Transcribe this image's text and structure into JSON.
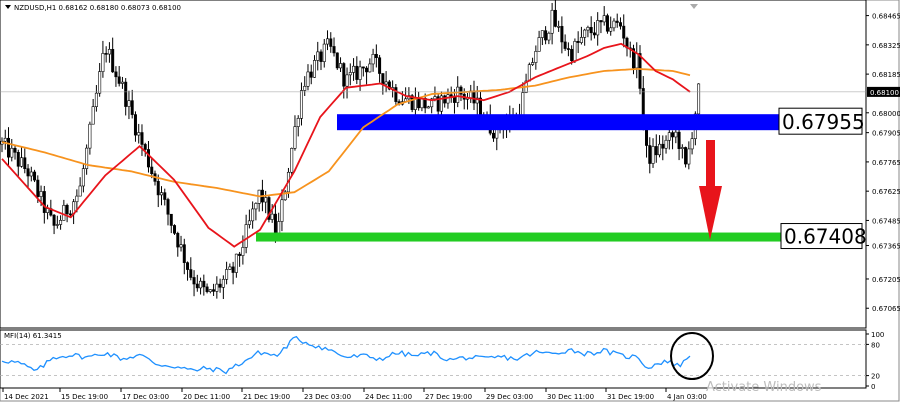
{
  "symbol_info": "NZDUSD,H1  0.68162 0.68180 0.68073 0.68100",
  "mfi_label": "MFI(14) 61.3415",
  "watermark": "Activate Windows",
  "colors": {
    "candle": "#000000",
    "ma_fast": "#e8141b",
    "ma_slow": "#f7931e",
    "resistance_zone": "#0000ff",
    "support_zone": "#22cc22",
    "arrow": "#e8141b",
    "mfi_line": "#1e90ff"
  },
  "chart_data": [
    {
      "type": "candlestick",
      "title": "NZDUSD,H1",
      "x_ticks": [
        "14 Dec 2021",
        "15 Dec 19:00",
        "17 Dec 03:00",
        "20 Dec 11:00",
        "21 Dec 19:00",
        "23 Dec 03:00",
        "24 Dec 11:00",
        "27 Dec 19:00",
        "29 Dec 03:00",
        "30 Dec 11:00",
        "31 Dec 19:00",
        "4 Jan 03:00"
      ],
      "y_ticks": [
        "0.68465",
        "0.68325",
        "0.68185",
        "0.68000",
        "0.67905",
        "0.67765",
        "0.67625",
        "0.67485",
        "0.67365",
        "0.67205",
        "0.67065"
      ],
      "ylim": [
        0.6698,
        0.6853
      ],
      "current_price": "0.68100",
      "levels": [
        {
          "label": "0.67955",
          "price": 0.67955,
          "from_x": "23 Dec 03:00",
          "color": "blue"
        },
        {
          "label": "0.67408",
          "price": 0.67408,
          "from_x": "21 Dec 19:00",
          "color": "green"
        }
      ],
      "close_anchors": [
        [
          0,
          0.6785
        ],
        [
          0.03,
          0.6772
        ],
        [
          0.06,
          0.6745
        ],
        [
          0.09,
          0.6762
        ],
        [
          0.12,
          0.6832
        ],
        [
          0.14,
          0.6812
        ],
        [
          0.16,
          0.6788
        ],
        [
          0.19,
          0.6755
        ],
        [
          0.22,
          0.6722
        ],
        [
          0.24,
          0.6712
        ],
        [
          0.27,
          0.6725
        ],
        [
          0.3,
          0.6762
        ],
        [
          0.32,
          0.6742
        ],
        [
          0.35,
          0.6815
        ],
        [
          0.38,
          0.6832
        ],
        [
          0.4,
          0.6815
        ],
        [
          0.43,
          0.6825
        ],
        [
          0.46,
          0.6808
        ],
        [
          0.5,
          0.6803
        ],
        [
          0.53,
          0.681
        ],
        [
          0.55,
          0.6805
        ],
        [
          0.57,
          0.6792
        ],
        [
          0.6,
          0.6798
        ],
        [
          0.62,
          0.683
        ],
        [
          0.64,
          0.6845
        ],
        [
          0.66,
          0.6828
        ],
        [
          0.68,
          0.6838
        ],
        [
          0.7,
          0.6842
        ],
        [
          0.72,
          0.6842
        ],
        [
          0.73,
          0.6828
        ],
        [
          0.74,
          0.6823
        ],
        [
          0.75,
          0.6778
        ],
        [
          0.77,
          0.6785
        ],
        [
          0.785,
          0.679
        ],
        [
          0.795,
          0.6773
        ],
        [
          0.81,
          0.681
        ]
      ],
      "ma_fast_anchors": [
        [
          0,
          0.6778
        ],
        [
          0.05,
          0.6755
        ],
        [
          0.08,
          0.675
        ],
        [
          0.12,
          0.677
        ],
        [
          0.16,
          0.6784
        ],
        [
          0.2,
          0.6768
        ],
        [
          0.24,
          0.6745
        ],
        [
          0.27,
          0.6736
        ],
        [
          0.3,
          0.6744
        ],
        [
          0.34,
          0.6772
        ],
        [
          0.37,
          0.6798
        ],
        [
          0.4,
          0.6812
        ],
        [
          0.44,
          0.6814
        ],
        [
          0.47,
          0.6808
        ],
        [
          0.5,
          0.6806
        ],
        [
          0.53,
          0.6808
        ],
        [
          0.56,
          0.6806
        ],
        [
          0.59,
          0.681
        ],
        [
          0.62,
          0.6817
        ],
        [
          0.65,
          0.6822
        ],
        [
          0.68,
          0.6827
        ],
        [
          0.7,
          0.6831
        ],
        [
          0.72,
          0.6833
        ],
        [
          0.74,
          0.6828
        ],
        [
          0.76,
          0.682
        ],
        [
          0.78,
          0.6816
        ],
        [
          0.8,
          0.681
        ]
      ],
      "ma_slow_anchors": [
        [
          0,
          0.6786
        ],
        [
          0.05,
          0.6781
        ],
        [
          0.1,
          0.6775
        ],
        [
          0.15,
          0.6772
        ],
        [
          0.2,
          0.6767
        ],
        [
          0.25,
          0.6764
        ],
        [
          0.3,
          0.676
        ],
        [
          0.34,
          0.6762
        ],
        [
          0.38,
          0.6772
        ],
        [
          0.42,
          0.6793
        ],
        [
          0.46,
          0.6804
        ],
        [
          0.5,
          0.6809
        ],
        [
          0.54,
          0.681
        ],
        [
          0.58,
          0.6811
        ],
        [
          0.62,
          0.6813
        ],
        [
          0.66,
          0.6817
        ],
        [
          0.7,
          0.682
        ],
        [
          0.74,
          0.6821
        ],
        [
          0.78,
          0.682
        ],
        [
          0.8,
          0.6818
        ]
      ]
    },
    {
      "type": "line",
      "title": "MFI(14) 61.3415",
      "ylim": [
        0,
        100
      ],
      "y_ticks": [
        "100",
        "80",
        "20",
        "0"
      ],
      "value_anchors": [
        [
          0,
          50
        ],
        [
          0.02,
          44
        ],
        [
          0.04,
          28
        ],
        [
          0.06,
          55
        ],
        [
          0.08,
          60
        ],
        [
          0.1,
          55
        ],
        [
          0.12,
          64
        ],
        [
          0.14,
          52
        ],
        [
          0.16,
          60
        ],
        [
          0.18,
          42
        ],
        [
          0.2,
          38
        ],
        [
          0.22,
          30
        ],
        [
          0.24,
          34
        ],
        [
          0.26,
          28
        ],
        [
          0.28,
          46
        ],
        [
          0.3,
          65
        ],
        [
          0.32,
          58
        ],
        [
          0.34,
          92
        ],
        [
          0.36,
          80
        ],
        [
          0.38,
          70
        ],
        [
          0.4,
          55
        ],
        [
          0.42,
          58
        ],
        [
          0.44,
          52
        ],
        [
          0.46,
          64
        ],
        [
          0.48,
          58
        ],
        [
          0.5,
          64
        ],
        [
          0.52,
          50
        ],
        [
          0.54,
          55
        ],
        [
          0.56,
          52
        ],
        [
          0.58,
          56
        ],
        [
          0.6,
          52
        ],
        [
          0.62,
          65
        ],
        [
          0.64,
          62
        ],
        [
          0.66,
          70
        ],
        [
          0.68,
          62
        ],
        [
          0.7,
          68
        ],
        [
          0.72,
          58
        ],
        [
          0.74,
          55
        ],
        [
          0.75,
          35
        ],
        [
          0.77,
          48
        ],
        [
          0.79,
          40
        ],
        [
          0.8,
          60
        ]
      ]
    }
  ]
}
